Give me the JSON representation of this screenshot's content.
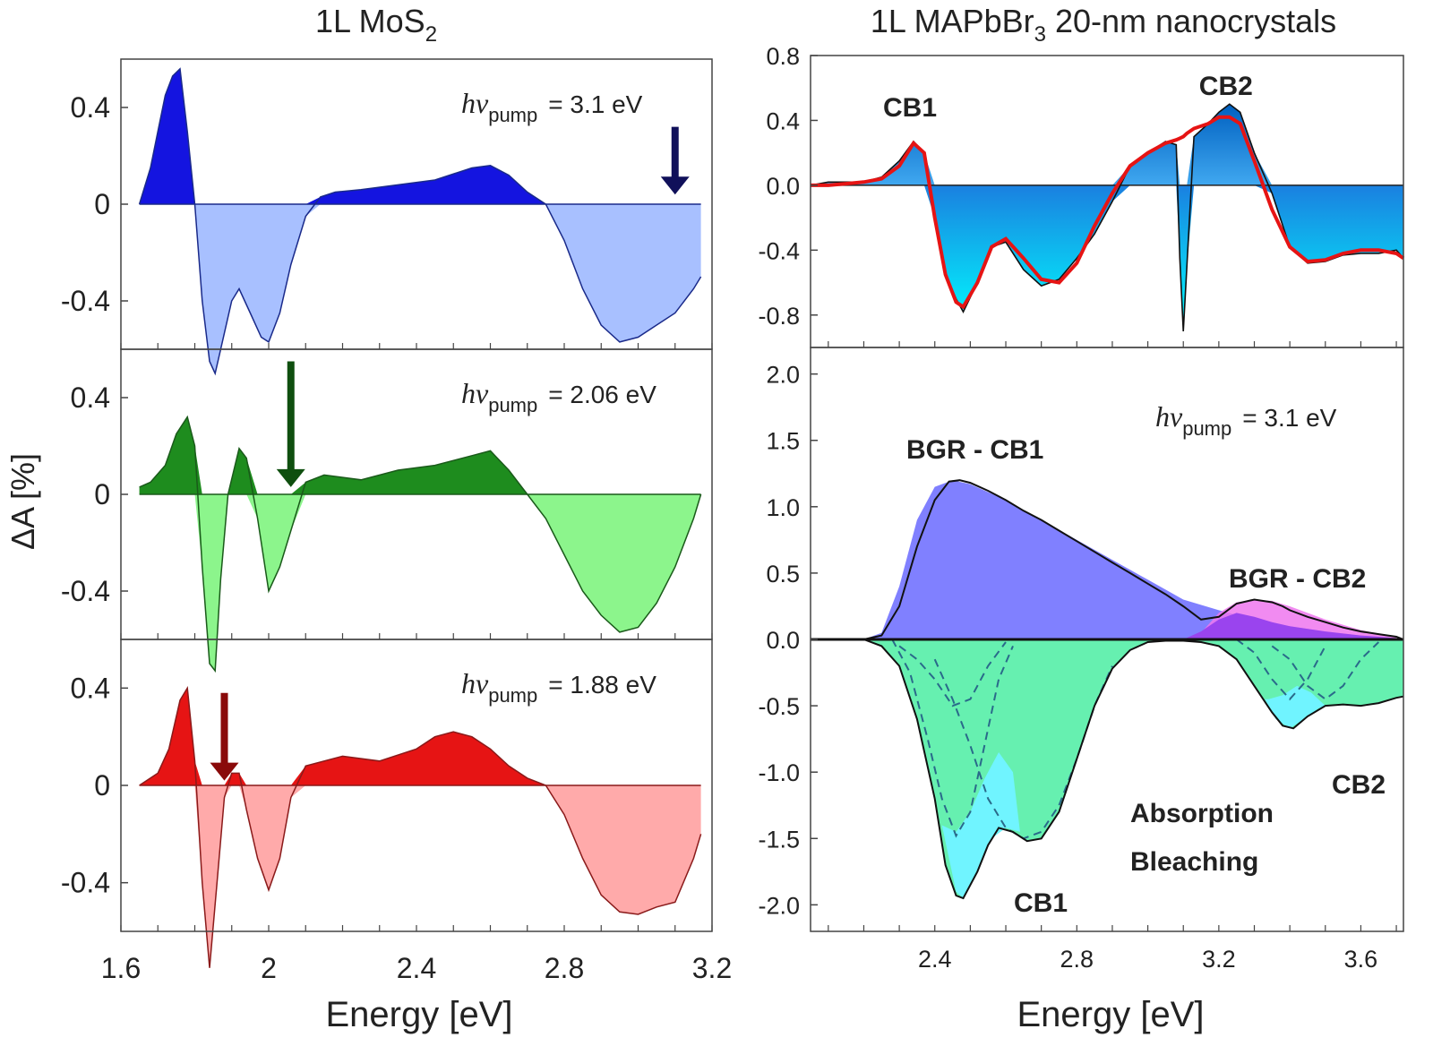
{
  "left_figure": {
    "title_main": "1L MoS",
    "title_sub": "2",
    "ylabel": "ΔA [%]",
    "xlabel": "Energy [eV]",
    "x_ticks": [
      "1.6",
      "2",
      "2.4",
      "2.8",
      "3.2"
    ],
    "y_ticks": [
      "0.4",
      "0",
      "-0.4"
    ]
  },
  "right_figure": {
    "title_main": "1L MAPbBr",
    "title_sub": "3",
    "title_rest": " 20-nm nanocrystals",
    "xlabel": "Energy [eV]",
    "x_ticks": [
      "2.4",
      "2.8",
      "3.2",
      "3.6"
    ],
    "top_y_ticks": [
      "0.8",
      "0.4",
      "0.0",
      "-0.4",
      "-0.8"
    ],
    "bottom_y_ticks": [
      "2.0",
      "1.5",
      "1.0",
      "0.5",
      "0.0",
      "-0.5",
      "-1.0",
      "-1.5",
      "-2.0"
    ]
  },
  "chart_data": [
    {
      "type": "area",
      "panel": "left-top",
      "pump_h": "h",
      "pump_nu": "ν",
      "pump_sub": "pump",
      "pump_value": "=  3.1 eV",
      "pump_energy": 3.1,
      "xlim": [
        1.6,
        3.2
      ],
      "ylim": [
        -0.6,
        0.6
      ],
      "color_pos": "#1414e0",
      "color_neg": "#a8c0ff",
      "color_line": "#1a2a8a",
      "arrow_color": "#10105a",
      "x": [
        1.65,
        1.68,
        1.7,
        1.72,
        1.74,
        1.76,
        1.78,
        1.8,
        1.82,
        1.84,
        1.855,
        1.87,
        1.9,
        1.92,
        1.95,
        1.98,
        2.0,
        2.03,
        2.06,
        2.1,
        2.14,
        2.18,
        2.25,
        2.35,
        2.45,
        2.55,
        2.6,
        2.65,
        2.7,
        2.75,
        2.8,
        2.85,
        2.9,
        2.95,
        3.0,
        3.05,
        3.1,
        3.15,
        3.17
      ],
      "y": [
        0.0,
        0.15,
        0.3,
        0.45,
        0.53,
        0.56,
        0.3,
        0.0,
        -0.4,
        -0.65,
        -0.7,
        -0.6,
        -0.4,
        -0.35,
        -0.45,
        -0.55,
        -0.57,
        -0.45,
        -0.25,
        -0.05,
        0.03,
        0.05,
        0.06,
        0.08,
        0.1,
        0.15,
        0.16,
        0.12,
        0.05,
        0.0,
        -0.15,
        -0.35,
        -0.5,
        -0.57,
        -0.55,
        -0.5,
        -0.45,
        -0.35,
        -0.3
      ]
    },
    {
      "type": "area",
      "panel": "left-middle",
      "pump_h": "h",
      "pump_nu": "ν",
      "pump_sub": "pump",
      "pump_value": "=  2.06 eV",
      "pump_energy": 2.06,
      "xlim": [
        1.6,
        3.2
      ],
      "ylim": [
        -0.6,
        0.6
      ],
      "color_pos": "#1e8c1e",
      "color_neg": "#8cf58c",
      "color_line": "#1a5a1a",
      "arrow_color": "#0f4f0f",
      "x": [
        1.65,
        1.68,
        1.72,
        1.75,
        1.78,
        1.8,
        1.82,
        1.84,
        1.855,
        1.87,
        1.89,
        1.92,
        1.94,
        1.97,
        2.0,
        2.03,
        2.06,
        2.1,
        2.15,
        2.25,
        2.35,
        2.45,
        2.55,
        2.6,
        2.65,
        2.7,
        2.75,
        2.8,
        2.85,
        2.9,
        2.95,
        3.0,
        3.05,
        3.1,
        3.15,
        3.17
      ],
      "y": [
        0.03,
        0.05,
        0.12,
        0.25,
        0.32,
        0.2,
        -0.3,
        -0.7,
        -0.73,
        -0.35,
        0.0,
        0.19,
        0.15,
        -0.1,
        -0.4,
        -0.3,
        -0.15,
        0.05,
        0.08,
        0.06,
        0.1,
        0.12,
        0.16,
        0.18,
        0.1,
        0.0,
        -0.1,
        -0.25,
        -0.4,
        -0.5,
        -0.57,
        -0.55,
        -0.45,
        -0.3,
        -0.1,
        0.0
      ]
    },
    {
      "type": "area",
      "panel": "left-bottom",
      "pump_h": "h",
      "pump_nu": "ν",
      "pump_sub": "pump",
      "pump_value": "=  1.88 eV",
      "pump_energy": 1.88,
      "xlim": [
        1.6,
        3.2
      ],
      "ylim": [
        -0.6,
        0.6
      ],
      "color_pos": "#e61414",
      "color_neg": "#ffaaaa",
      "color_line": "#8a1a1a",
      "arrow_color": "#8a0a0a",
      "x": [
        1.65,
        1.7,
        1.73,
        1.76,
        1.78,
        1.8,
        1.82,
        1.84,
        1.86,
        1.88,
        1.9,
        1.92,
        1.94,
        1.97,
        2.0,
        2.03,
        2.06,
        2.1,
        2.2,
        2.3,
        2.4,
        2.45,
        2.5,
        2.55,
        2.6,
        2.65,
        2.7,
        2.75,
        2.8,
        2.85,
        2.9,
        2.95,
        3.0,
        3.05,
        3.1,
        3.15,
        3.17
      ],
      "y": [
        0.0,
        0.05,
        0.15,
        0.35,
        0.4,
        0.1,
        -0.4,
        -0.75,
        -0.4,
        -0.05,
        0.05,
        0.05,
        -0.1,
        -0.3,
        -0.43,
        -0.3,
        -0.05,
        0.08,
        0.12,
        0.1,
        0.15,
        0.2,
        0.22,
        0.2,
        0.15,
        0.08,
        0.03,
        0.0,
        -0.12,
        -0.3,
        -0.45,
        -0.52,
        -0.53,
        -0.5,
        -0.48,
        -0.3,
        -0.2
      ]
    },
    {
      "type": "line",
      "panel": "right-top",
      "labels": [
        "CB1",
        "CB2"
      ],
      "xlim": [
        2.05,
        3.72
      ],
      "ylim": [
        -1.0,
        0.8
      ],
      "fit_color": "#e61414",
      "fill_pos": "#3aa0e6",
      "fill_neg": "#00e0ff",
      "x": [
        2.05,
        2.1,
        2.15,
        2.2,
        2.25,
        2.3,
        2.34,
        2.37,
        2.4,
        2.43,
        2.46,
        2.48,
        2.52,
        2.56,
        2.6,
        2.65,
        2.7,
        2.75,
        2.8,
        2.85,
        2.9,
        2.95,
        3.0,
        3.05,
        3.08,
        3.09,
        3.1,
        3.11,
        3.13,
        3.17,
        3.2,
        3.23,
        3.26,
        3.3,
        3.35,
        3.4,
        3.45,
        3.5,
        3.55,
        3.6,
        3.65,
        3.7,
        3.72
      ],
      "y": [
        0.0,
        0.02,
        0.02,
        0.02,
        0.05,
        0.15,
        0.27,
        0.2,
        -0.2,
        -0.55,
        -0.7,
        -0.78,
        -0.6,
        -0.38,
        -0.35,
        -0.52,
        -0.62,
        -0.58,
        -0.45,
        -0.3,
        -0.1,
        0.12,
        0.2,
        0.27,
        0.25,
        -0.45,
        -0.9,
        -0.5,
        0.3,
        0.38,
        0.45,
        0.5,
        0.45,
        0.2,
        -0.05,
        -0.38,
        -0.48,
        -0.47,
        -0.43,
        -0.42,
        -0.42,
        -0.4,
        -0.45
      ],
      "fit_y": [
        0.0,
        0.0,
        0.01,
        0.02,
        0.04,
        0.12,
        0.26,
        0.2,
        -0.2,
        -0.55,
        -0.72,
        -0.75,
        -0.6,
        -0.38,
        -0.33,
        -0.45,
        -0.58,
        -0.6,
        -0.48,
        -0.25,
        -0.05,
        0.12,
        0.2,
        0.26,
        0.28,
        0.29,
        0.3,
        0.32,
        0.35,
        0.38,
        0.42,
        0.42,
        0.38,
        0.15,
        -0.15,
        -0.38,
        -0.47,
        -0.46,
        -0.42,
        -0.4,
        -0.4,
        -0.42,
        -0.45
      ]
    },
    {
      "type": "area",
      "panel": "right-bottom",
      "pump_h": "h",
      "pump_nu": "ν",
      "pump_sub": "pump",
      "pump_value": "=  3.1 eV",
      "labels": [
        "BGR - CB1",
        "BGR - CB2",
        "Absorption",
        "Bleaching",
        "CB1",
        "CB2"
      ],
      "xlim": [
        2.05,
        3.72
      ],
      "ylim": [
        -2.2,
        2.2
      ],
      "bgr_cb1": {
        "color": "#8080ff",
        "x": [
          2.2,
          2.25,
          2.3,
          2.35,
          2.4,
          2.45,
          2.5,
          2.6,
          2.7,
          2.8,
          2.9,
          3.0,
          3.1,
          3.2,
          3.3,
          3.4,
          3.5,
          3.6,
          3.7
        ],
        "y": [
          0.0,
          0.05,
          0.4,
          0.9,
          1.15,
          1.2,
          1.17,
          1.05,
          0.9,
          0.75,
          0.6,
          0.45,
          0.3,
          0.22,
          0.15,
          0.1,
          0.06,
          0.03,
          0.01
        ]
      },
      "bgr_cb2": {
        "color": "#ee77ee",
        "x": [
          3.1,
          3.15,
          3.2,
          3.25,
          3.3,
          3.35,
          3.4,
          3.5,
          3.6,
          3.7
        ],
        "y": [
          0.0,
          0.05,
          0.2,
          0.28,
          0.3,
          0.29,
          0.25,
          0.15,
          0.07,
          0.02
        ]
      },
      "total": {
        "x": [
          2.05,
          2.2,
          2.25,
          2.3,
          2.35,
          2.4,
          2.44,
          2.47,
          2.5,
          2.55,
          2.6,
          2.65,
          2.7,
          2.75,
          2.8,
          2.85,
          2.9,
          2.95,
          3.0,
          3.05,
          3.1,
          3.15,
          3.2,
          3.25,
          3.3,
          3.35,
          3.38,
          3.4,
          3.45,
          3.5,
          3.55,
          3.6,
          3.65,
          3.7,
          3.72
        ],
        "y": [
          0.0,
          0.0,
          0.03,
          0.25,
          0.7,
          1.05,
          1.19,
          1.2,
          1.18,
          1.12,
          1.05,
          0.97,
          0.9,
          0.82,
          0.74,
          0.66,
          0.58,
          0.5,
          0.42,
          0.34,
          0.25,
          0.15,
          0.17,
          0.27,
          0.3,
          0.28,
          0.25,
          0.22,
          0.17,
          0.13,
          0.09,
          0.06,
          0.04,
          0.02,
          0.0
        ]
      },
      "bleach": {
        "color": "#66f0b0",
        "x": [
          2.05,
          2.2,
          2.25,
          2.3,
          2.35,
          2.4,
          2.43,
          2.46,
          2.48,
          2.52,
          2.55,
          2.58,
          2.62,
          2.66,
          2.7,
          2.75,
          2.8,
          2.85,
          2.9,
          2.95,
          3.0,
          3.05,
          3.1,
          3.15,
          3.2,
          3.25,
          3.3,
          3.35,
          3.38,
          3.41,
          3.45,
          3.5,
          3.55,
          3.6,
          3.65,
          3.7,
          3.72
        ],
        "y": [
          0.0,
          0.0,
          -0.05,
          -0.2,
          -0.6,
          -1.2,
          -1.7,
          -1.93,
          -1.95,
          -1.75,
          -1.55,
          -1.42,
          -1.45,
          -1.52,
          -1.5,
          -1.3,
          -0.9,
          -0.5,
          -0.22,
          -0.08,
          -0.02,
          -0.01,
          -0.01,
          -0.02,
          -0.05,
          -0.15,
          -0.35,
          -0.55,
          -0.65,
          -0.67,
          -0.58,
          -0.5,
          -0.49,
          -0.5,
          -0.48,
          -0.44,
          -0.43
        ]
      }
    }
  ]
}
